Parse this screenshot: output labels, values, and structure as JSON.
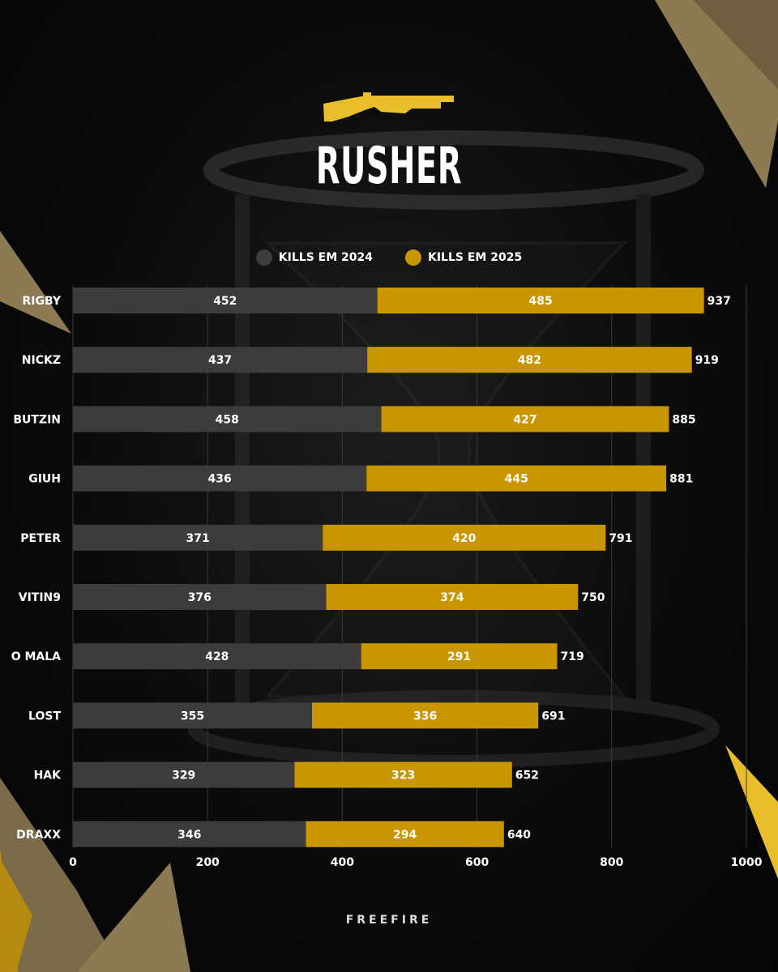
{
  "title": "RUSHER",
  "footer": "FREEFIRE",
  "icon": "shotgun-icon",
  "colors": {
    "series_2024": "#3d3b3b",
    "series_2025": "#c99600",
    "accent": "#e8be2c",
    "text": "#ffffff"
  },
  "chart_data": {
    "type": "bar",
    "orientation": "horizontal",
    "stacked": true,
    "categories": [
      "RIGBY",
      "NICKZ",
      "BUTZIN",
      "GIUH",
      "PETER",
      "VITIN9",
      "O MALA",
      "LOST",
      "HAK",
      "DRAXX"
    ],
    "series": [
      {
        "name": "KILLS EM 2024",
        "values": [
          452,
          437,
          458,
          436,
          371,
          376,
          428,
          355,
          329,
          346
        ]
      },
      {
        "name": "KILLS EM 2025",
        "values": [
          485,
          482,
          427,
          445,
          420,
          374,
          291,
          336,
          323,
          294
        ]
      }
    ],
    "totals": [
      937,
      919,
      885,
      881,
      791,
      750,
      719,
      691,
      652,
      640
    ],
    "xlim": [
      0,
      1000
    ],
    "x_ticks": [
      0,
      200,
      400,
      600,
      800,
      1000
    ],
    "grid": true,
    "legend_position": "top-center"
  }
}
